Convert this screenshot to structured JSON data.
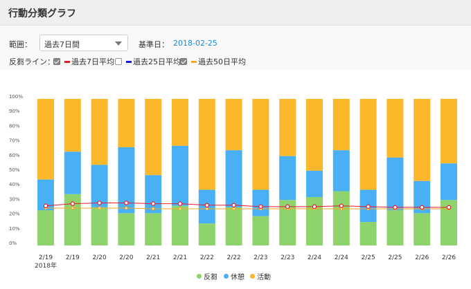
{
  "header": {
    "title": "行動分類グラフ"
  },
  "controls": {
    "range_label": "範囲：",
    "range_value": "過去7日間",
    "base_date_label": "基準日：",
    "base_date_value": "2018-02-25",
    "rumination_line_label": "反芻ライン：",
    "lines": [
      {
        "label": "過去7日平均",
        "checked": true,
        "color": "#e8192c"
      },
      {
        "label": "過去25日平均",
        "checked": false,
        "color": "#1a1adc"
      },
      {
        "label": "過去50日平均",
        "checked": true,
        "color": "#f5a623"
      }
    ]
  },
  "chart_data": {
    "type": "bar",
    "stacked": true,
    "categories": [
      "2/19",
      "2/19",
      "2/20",
      "2/20",
      "2/21",
      "2/21",
      "2/22",
      "2/22",
      "2/23",
      "2/23",
      "2/24",
      "2/24",
      "2/25",
      "2/25",
      "2/26",
      "2/26"
    ],
    "year_label": "2018年",
    "series": [
      {
        "name": "反芻",
        "color": "#8fd36c",
        "values": [
          24,
          35,
          26,
          22,
          22,
          27,
          15,
          26,
          20,
          31,
          33,
          37,
          16,
          24,
          22,
          31
        ]
      },
      {
        "name": "休憩",
        "color": "#4ab0f5",
        "values": [
          21,
          29,
          29,
          45,
          26,
          41,
          23,
          39,
          18,
          30,
          18,
          28,
          22,
          36,
          22,
          25
        ]
      },
      {
        "name": "活動",
        "color": "#fbb82a",
        "values": [
          55,
          36,
          45,
          33,
          52,
          32,
          62,
          35,
          62,
          39,
          49,
          35,
          62,
          40,
          56,
          44
        ]
      }
    ],
    "avg7_values": [
      27,
      28.5,
      29,
      29,
      28.5,
      28.5,
      27.5,
      27.5,
      26.5,
      26.5,
      26.5,
      27,
      26.5,
      26,
      26,
      26
    ],
    "avg50_values": [
      25.5,
      25.5,
      25.5,
      25.5,
      25,
      25,
      25,
      25,
      25,
      25,
      25,
      25,
      25,
      25,
      25,
      25
    ],
    "y_ticks": [
      "0%",
      "10%",
      "20%",
      "30%",
      "40%",
      "50%",
      "60%",
      "70%",
      "80%",
      "90%",
      "100%"
    ],
    "ylim": [
      0,
      100
    ],
    "legend": [
      {
        "label": "反芻",
        "color": "#8fd36c"
      },
      {
        "label": "休憩",
        "color": "#4ab0f5"
      },
      {
        "label": "活動",
        "color": "#fbb82a"
      }
    ]
  }
}
